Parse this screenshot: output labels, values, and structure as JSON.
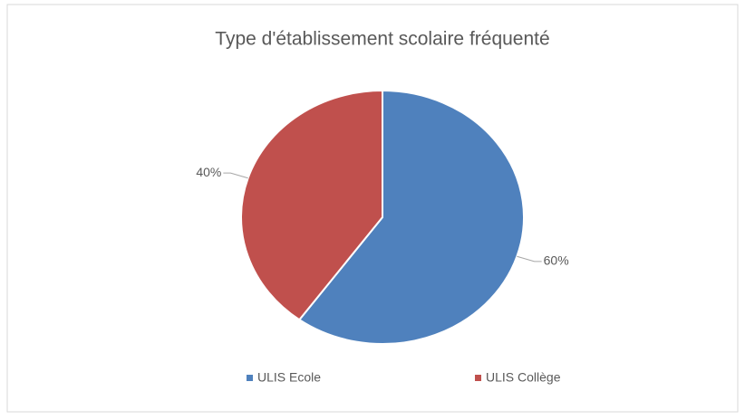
{
  "chart_data": {
    "type": "pie",
    "title": "Type d'établissement scolaire fréquenté",
    "categories": [
      "ULIS Ecole",
      "ULIS Collège"
    ],
    "values": [
      60,
      40
    ],
    "value_labels": [
      "60%",
      "40%"
    ],
    "colors": [
      "#4f81bd",
      "#c0504d"
    ],
    "legend": "bottom"
  }
}
